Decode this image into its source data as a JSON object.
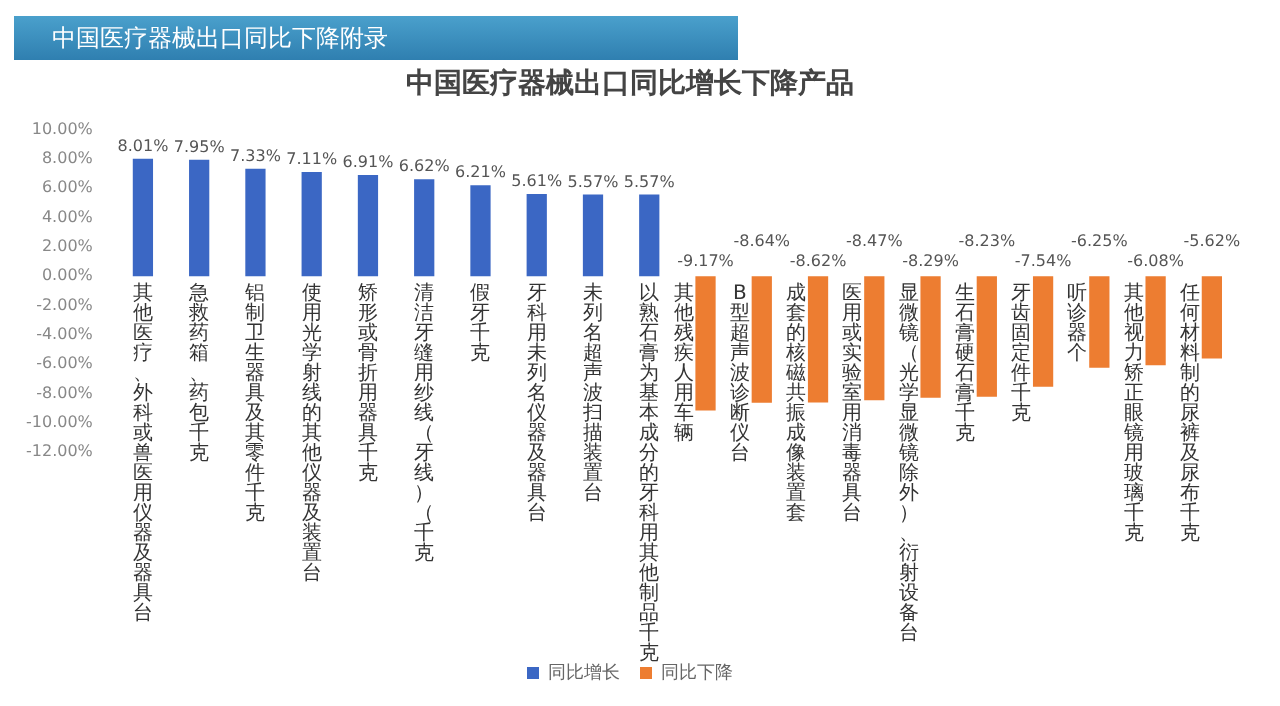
{
  "chart_data": {
    "type": "bar",
    "title": "中国医疗器械出口同比增长下降产品",
    "annotations": [
      "中国医疗器械出口同比下降附录"
    ],
    "categories": [
      "其他医疗、外科或兽医用仪器及器具台",
      "急救药箱、药包千克",
      "铝制卫生器具及其零件千克",
      "使用光学射线的其他仪器及装置台",
      "矫形或骨折用器具千克",
      "清洁牙缝用纱线（牙线）（千克",
      "假牙千克",
      "牙科用未列名仪器及器具台",
      "未列名超声波扫描装置台",
      "以熟石膏为基本成分的牙科用其他制品千克",
      "其他残疾人用车辆",
      "B型超声波诊断仪台",
      "成套的核磁共振成像装置套",
      "医用或实验室用消毒器具台",
      "显微镜（光学显微镜除外）、衍射设备台",
      "生石膏硬石膏千克",
      "牙齿固定件千克",
      "听诊器个",
      "其他视力矫正眼镜用玻璃千克",
      "任何材料制的尿裤及尿布千克"
    ],
    "series": [
      {
        "name": "同比增长",
        "color": "#3b67c4",
        "values": [
          8.01,
          7.95,
          7.33,
          7.11,
          6.91,
          6.62,
          6.21,
          5.61,
          5.57,
          5.57,
          null,
          null,
          null,
          null,
          null,
          null,
          null,
          null,
          null,
          null
        ],
        "value_labels": [
          "8.01%",
          "7.95%",
          "7.33%",
          "7.11%",
          "6.91%",
          "6.62%",
          "6.21%",
          "5.61%",
          "5.57%",
          "5.57%",
          null,
          null,
          null,
          null,
          null,
          null,
          null,
          null,
          null,
          null
        ]
      },
      {
        "name": "同比下降",
        "color": "#ed7d31",
        "values": [
          null,
          null,
          null,
          null,
          null,
          null,
          null,
          null,
          null,
          null,
          -9.17,
          -8.64,
          -8.62,
          -8.47,
          -8.29,
          -8.23,
          -7.54,
          -6.25,
          -6.08,
          -5.62
        ],
        "value_labels": [
          null,
          null,
          null,
          null,
          null,
          null,
          null,
          null,
          null,
          null,
          "-9.17%",
          "-8.64%",
          "-8.62%",
          "-8.47%",
          "-8.29%",
          "-8.23%",
          "-7.54%",
          "-6.25%",
          "-6.08%",
          "-5.62%"
        ]
      }
    ],
    "ylim": [
      -12,
      10
    ],
    "yticks": [
      {
        "value": -12,
        "label": "-12.00%"
      },
      {
        "value": -10,
        "label": "-10.00%"
      },
      {
        "value": -8,
        "label": "-8.00%"
      },
      {
        "value": -6,
        "label": "-6.00%"
      },
      {
        "value": -4,
        "label": "-4.00%"
      },
      {
        "value": -2,
        "label": "-2.00%"
      },
      {
        "value": 0,
        "label": "0.00%"
      },
      {
        "value": 2,
        "label": "2.00%"
      },
      {
        "value": 4,
        "label": "4.00%"
      },
      {
        "value": 6,
        "label": "6.00%"
      },
      {
        "value": 8,
        "label": "8.00%"
      },
      {
        "value": 10,
        "label": "10.00%"
      }
    ],
    "grid": false,
    "legend": "bottom"
  }
}
